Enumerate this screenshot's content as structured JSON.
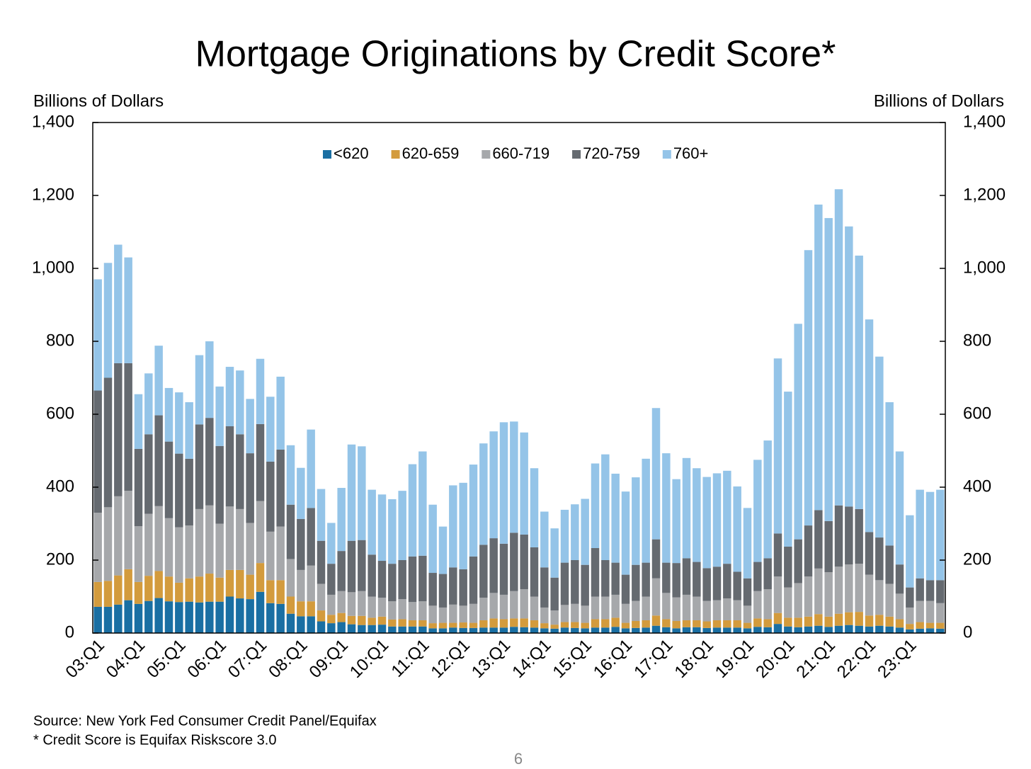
{
  "chart_data": {
    "type": "stacked_bar",
    "title": "Mortgage Originations by Credit Score*",
    "ylabel": "Billions of Dollars",
    "y2label": "Billions of Dollars",
    "source": "Source: New York Fed Consumer Credit Panel/Equifax",
    "note": "* Credit Score is Equifax Riskscore 3.0",
    "page_number": "6",
    "legend": "top",
    "grid": false,
    "ylim": [
      0,
      1400
    ],
    "yticks": [
      0,
      200,
      400,
      600,
      800,
      {
        "value": 1000,
        "label": "1,000"
      },
      {
        "value": 1200,
        "label": "1,200"
      },
      {
        "value": 1400,
        "label": "1,400"
      }
    ],
    "y2lim": [
      0,
      1400
    ],
    "y2ticks": [
      0,
      200,
      400,
      600,
      800,
      {
        "value": 1000,
        "label": "1,000"
      },
      {
        "value": 1200,
        "label": "1,200"
      },
      {
        "value": 1400,
        "label": "1,400"
      }
    ],
    "categories": [
      "03:Q1",
      null,
      null,
      null,
      "04:Q1",
      null,
      null,
      null,
      "05:Q1",
      null,
      null,
      null,
      "06:Q1",
      null,
      null,
      null,
      "07:Q1",
      null,
      null,
      null,
      "08:Q1",
      null,
      null,
      null,
      "09:Q1",
      null,
      null,
      null,
      "10:Q1",
      null,
      null,
      null,
      "11:Q1",
      null,
      null,
      null,
      "12:Q1",
      null,
      null,
      null,
      "13:Q1",
      null,
      null,
      null,
      "14:Q1",
      null,
      null,
      null,
      "15:Q1",
      null,
      null,
      null,
      "16:Q1",
      null,
      null,
      null,
      "17:Q1",
      null,
      null,
      null,
      "18:Q1",
      null,
      null,
      null,
      "19:Q1",
      null,
      null,
      null,
      "20:Q1",
      null,
      null,
      null,
      "21:Q1",
      null,
      null,
      null,
      "22:Q1",
      null,
      null,
      null,
      "23:Q1",
      null,
      null,
      null
    ],
    "series": [
      {
        "name": "<620",
        "color": "#1a6fa3",
        "values": [
          72,
          72,
          78,
          90,
          80,
          88,
          96,
          87,
          85,
          86,
          84,
          86,
          86,
          100,
          95,
          93,
          113,
          82,
          80,
          53,
          46,
          46,
          32,
          27,
          30,
          24,
          22,
          22,
          23,
          18,
          18,
          18,
          18,
          13,
          13,
          15,
          14,
          14,
          15,
          15,
          15,
          17,
          16,
          15,
          13,
          12,
          15,
          14,
          13,
          15,
          15,
          17,
          13,
          14,
          15,
          20,
          16,
          13,
          16,
          16,
          14,
          15,
          15,
          15,
          13,
          17,
          16,
          25,
          18,
          16,
          18,
          20,
          17,
          20,
          22,
          20,
          18,
          20,
          18,
          15,
          10,
          12,
          13,
          12
        ]
      },
      {
        "name": "620-659",
        "color": "#d39b3d",
        "values": [
          68,
          71,
          80,
          85,
          60,
          69,
          74,
          68,
          53,
          64,
          71,
          77,
          66,
          73,
          78,
          67,
          79,
          63,
          65,
          47,
          41,
          41,
          30,
          23,
          25,
          23,
          25,
          20,
          22,
          19,
          20,
          17,
          17,
          14,
          15,
          13,
          15,
          14,
          20,
          25,
          23,
          23,
          24,
          20,
          14,
          11,
          15,
          16,
          15,
          23,
          23,
          25,
          15,
          19,
          20,
          28,
          22,
          20,
          19,
          19,
          18,
          20,
          20,
          20,
          15,
          23,
          22,
          30,
          24,
          26,
          27,
          32,
          28,
          33,
          35,
          38,
          30,
          30,
          27,
          23,
          15,
          18,
          15,
          16
        ]
      },
      {
        "name": "660-719",
        "color": "#a6a8ab",
        "values": [
          190,
          202,
          217,
          215,
          153,
          170,
          178,
          160,
          152,
          145,
          185,
          187,
          148,
          174,
          167,
          142,
          170,
          133,
          147,
          103,
          86,
          98,
          73,
          55,
          60,
          65,
          68,
          58,
          52,
          50,
          55,
          50,
          52,
          48,
          42,
          50,
          46,
          52,
          62,
          70,
          67,
          75,
          80,
          65,
          43,
          39,
          47,
          50,
          47,
          62,
          62,
          63,
          52,
          55,
          65,
          102,
          72,
          65,
          70,
          65,
          56,
          55,
          60,
          55,
          47,
          75,
          82,
          100,
          83,
          95,
          110,
          125,
          122,
          129,
          131,
          132,
          112,
          95,
          90,
          70,
          45,
          58,
          60,
          54
        ]
      },
      {
        "name": "720-759",
        "color": "#656a70",
        "values": [
          335,
          355,
          365,
          350,
          212,
          218,
          249,
          210,
          202,
          183,
          232,
          240,
          213,
          220,
          205,
          191,
          211,
          192,
          211,
          149,
          140,
          158,
          118,
          85,
          110,
          141,
          140,
          115,
          101,
          103,
          107,
          125,
          125,
          90,
          92,
          102,
          100,
          130,
          145,
          150,
          140,
          160,
          150,
          135,
          110,
          90,
          116,
          120,
          112,
          133,
          100,
          88,
          80,
          99,
          93,
          107,
          83,
          94,
          100,
          95,
          90,
          92,
          95,
          78,
          75,
          80,
          85,
          118,
          112,
          120,
          140,
          160,
          140,
          168,
          159,
          150,
          117,
          117,
          105,
          80,
          55,
          62,
          57,
          63
        ]
      },
      {
        "name": "760+",
        "color": "#94c4e8",
        "values": [
          305,
          315,
          325,
          290,
          150,
          167,
          191,
          147,
          168,
          155,
          190,
          210,
          163,
          163,
          175,
          149,
          179,
          178,
          200,
          163,
          140,
          215,
          142,
          112,
          173,
          264,
          257,
          178,
          182,
          177,
          190,
          253,
          286,
          187,
          130,
          225,
          237,
          252,
          278,
          293,
          333,
          305,
          280,
          217,
          153,
          135,
          145,
          153,
          181,
          232,
          290,
          244,
          228,
          240,
          285,
          360,
          300,
          230,
          275,
          257,
          250,
          256,
          255,
          234,
          193,
          280,
          323,
          480,
          425,
          591,
          755,
          838,
          831,
          867,
          768,
          695,
          583,
          496,
          393,
          310,
          198,
          243,
          242,
          248
        ]
      }
    ]
  }
}
